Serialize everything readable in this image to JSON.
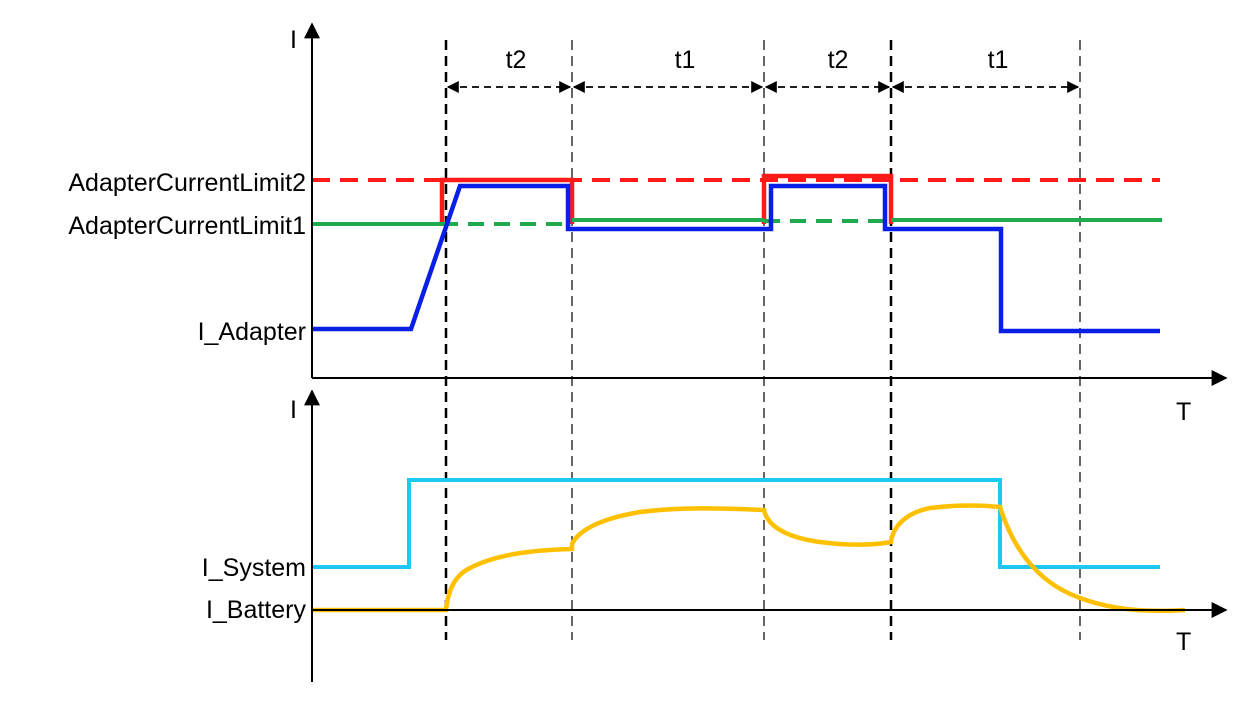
{
  "axis_labels": {
    "upper_y": "I",
    "upper_x": "T",
    "lower_y": "I",
    "lower_x": "T"
  },
  "signal_labels": {
    "adapter_limit2": "AdapterCurrentLimit2",
    "adapter_limit1": "AdapterCurrentLimit1",
    "i_adapter": "I_Adapter",
    "i_system": "I_System",
    "i_battery": "I_Battery"
  },
  "intervals": [
    "t2",
    "t1",
    "t2",
    "t1"
  ],
  "colors": {
    "adapter_limit2": "#ff1a1a",
    "adapter_limit1": "#1faa4f",
    "i_adapter": "#0a1fe6",
    "i_system": "#1ec8f0",
    "i_battery": "#ffc000",
    "axis": "#000000"
  }
}
